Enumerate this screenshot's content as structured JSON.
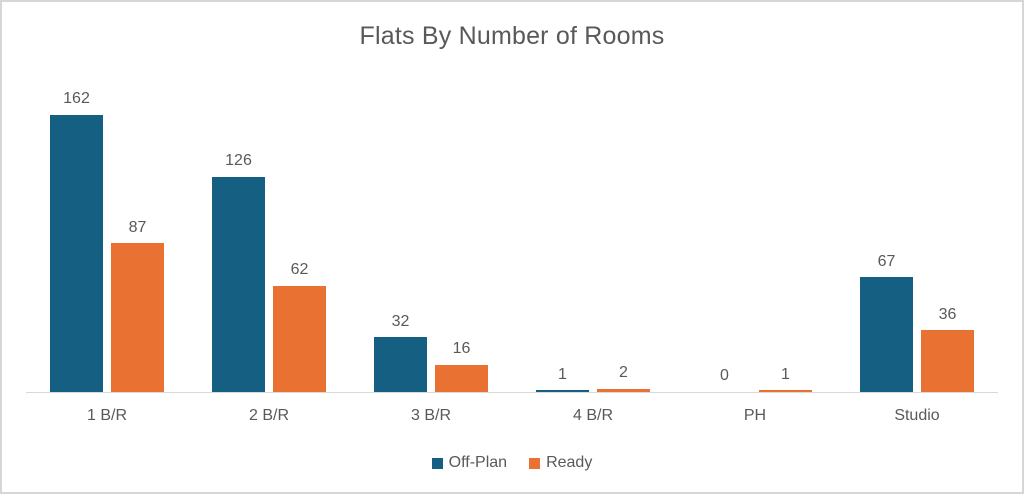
{
  "frame": {
    "background": "#ffffff",
    "border_color": "#d6d6d6"
  },
  "chart_data": {
    "type": "bar",
    "title": "Flats By Number of Rooms",
    "categories": [
      "1 B/R",
      "2 B/R",
      "3 B/R",
      "4 B/R",
      "PH",
      "Studio"
    ],
    "series": [
      {
        "name": "Off-Plan",
        "color": "#156082",
        "values": [
          162,
          126,
          32,
          1,
          0,
          67
        ]
      },
      {
        "name": "Ready",
        "color": "#E97132",
        "values": [
          87,
          62,
          16,
          2,
          1,
          36
        ]
      }
    ],
    "xlabel": "",
    "ylabel": "",
    "ylim": [
      0,
      162
    ],
    "grid": false,
    "data_labels": true,
    "legend_position": "bottom",
    "axis_line_color": "#d9d9d9",
    "text_color": "#595959"
  }
}
